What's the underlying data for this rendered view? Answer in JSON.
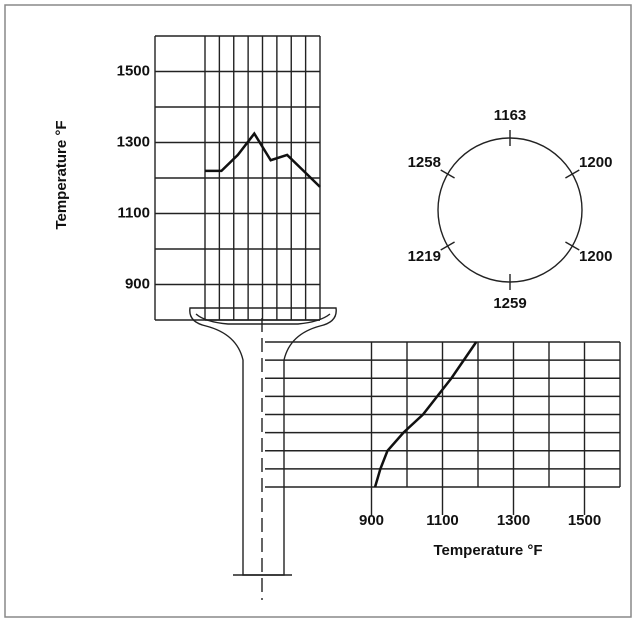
{
  "head_chart": {
    "y_label": "Temperature °F",
    "ylim": [
      800,
      1600
    ],
    "yticks": [
      900,
      1100,
      1300,
      1500
    ],
    "values": [
      1220,
      1220,
      1265,
      1325,
      1250,
      1265,
      1220,
      1175
    ]
  },
  "stem_chart": {
    "x_label": "Temperature °F",
    "xlim": [
      600,
      1600
    ],
    "xticks": [
      900,
      1100,
      1300,
      1500
    ],
    "values": [
      1195,
      1160,
      1125,
      1085,
      1045,
      990,
      945,
      925,
      910
    ]
  },
  "circle": {
    "values": [
      1163,
      1200,
      1200,
      1259,
      1219,
      1258
    ]
  }
}
